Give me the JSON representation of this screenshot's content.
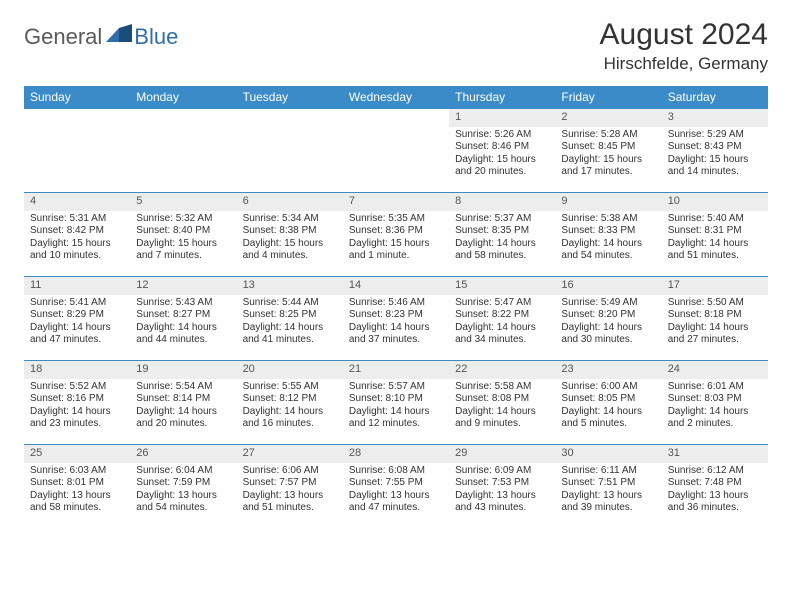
{
  "brand": {
    "part1": "General",
    "part2": "Blue"
  },
  "title": "August 2024",
  "subtitle": "Hirschfelde, Germany",
  "colors": {
    "header_bg": "#3b8bc8",
    "header_text": "#ffffff",
    "daynum_bg": "#ededed",
    "row_border": "#3b8bc8",
    "logo_gray": "#5a5a5a",
    "logo_blue": "#2f6fa8",
    "text": "#333333"
  },
  "day_headers": [
    "Sunday",
    "Monday",
    "Tuesday",
    "Wednesday",
    "Thursday",
    "Friday",
    "Saturday"
  ],
  "weeks": [
    [
      null,
      null,
      null,
      null,
      {
        "n": "1",
        "sr": "Sunrise: 5:26 AM",
        "ss": "Sunset: 8:46 PM",
        "d1": "Daylight: 15 hours",
        "d2": "and 20 minutes."
      },
      {
        "n": "2",
        "sr": "Sunrise: 5:28 AM",
        "ss": "Sunset: 8:45 PM",
        "d1": "Daylight: 15 hours",
        "d2": "and 17 minutes."
      },
      {
        "n": "3",
        "sr": "Sunrise: 5:29 AM",
        "ss": "Sunset: 8:43 PM",
        "d1": "Daylight: 15 hours",
        "d2": "and 14 minutes."
      }
    ],
    [
      {
        "n": "4",
        "sr": "Sunrise: 5:31 AM",
        "ss": "Sunset: 8:42 PM",
        "d1": "Daylight: 15 hours",
        "d2": "and 10 minutes."
      },
      {
        "n": "5",
        "sr": "Sunrise: 5:32 AM",
        "ss": "Sunset: 8:40 PM",
        "d1": "Daylight: 15 hours",
        "d2": "and 7 minutes."
      },
      {
        "n": "6",
        "sr": "Sunrise: 5:34 AM",
        "ss": "Sunset: 8:38 PM",
        "d1": "Daylight: 15 hours",
        "d2": "and 4 minutes."
      },
      {
        "n": "7",
        "sr": "Sunrise: 5:35 AM",
        "ss": "Sunset: 8:36 PM",
        "d1": "Daylight: 15 hours",
        "d2": "and 1 minute."
      },
      {
        "n": "8",
        "sr": "Sunrise: 5:37 AM",
        "ss": "Sunset: 8:35 PM",
        "d1": "Daylight: 14 hours",
        "d2": "and 58 minutes."
      },
      {
        "n": "9",
        "sr": "Sunrise: 5:38 AM",
        "ss": "Sunset: 8:33 PM",
        "d1": "Daylight: 14 hours",
        "d2": "and 54 minutes."
      },
      {
        "n": "10",
        "sr": "Sunrise: 5:40 AM",
        "ss": "Sunset: 8:31 PM",
        "d1": "Daylight: 14 hours",
        "d2": "and 51 minutes."
      }
    ],
    [
      {
        "n": "11",
        "sr": "Sunrise: 5:41 AM",
        "ss": "Sunset: 8:29 PM",
        "d1": "Daylight: 14 hours",
        "d2": "and 47 minutes."
      },
      {
        "n": "12",
        "sr": "Sunrise: 5:43 AM",
        "ss": "Sunset: 8:27 PM",
        "d1": "Daylight: 14 hours",
        "d2": "and 44 minutes."
      },
      {
        "n": "13",
        "sr": "Sunrise: 5:44 AM",
        "ss": "Sunset: 8:25 PM",
        "d1": "Daylight: 14 hours",
        "d2": "and 41 minutes."
      },
      {
        "n": "14",
        "sr": "Sunrise: 5:46 AM",
        "ss": "Sunset: 8:23 PM",
        "d1": "Daylight: 14 hours",
        "d2": "and 37 minutes."
      },
      {
        "n": "15",
        "sr": "Sunrise: 5:47 AM",
        "ss": "Sunset: 8:22 PM",
        "d1": "Daylight: 14 hours",
        "d2": "and 34 minutes."
      },
      {
        "n": "16",
        "sr": "Sunrise: 5:49 AM",
        "ss": "Sunset: 8:20 PM",
        "d1": "Daylight: 14 hours",
        "d2": "and 30 minutes."
      },
      {
        "n": "17",
        "sr": "Sunrise: 5:50 AM",
        "ss": "Sunset: 8:18 PM",
        "d1": "Daylight: 14 hours",
        "d2": "and 27 minutes."
      }
    ],
    [
      {
        "n": "18",
        "sr": "Sunrise: 5:52 AM",
        "ss": "Sunset: 8:16 PM",
        "d1": "Daylight: 14 hours",
        "d2": "and 23 minutes."
      },
      {
        "n": "19",
        "sr": "Sunrise: 5:54 AM",
        "ss": "Sunset: 8:14 PM",
        "d1": "Daylight: 14 hours",
        "d2": "and 20 minutes."
      },
      {
        "n": "20",
        "sr": "Sunrise: 5:55 AM",
        "ss": "Sunset: 8:12 PM",
        "d1": "Daylight: 14 hours",
        "d2": "and 16 minutes."
      },
      {
        "n": "21",
        "sr": "Sunrise: 5:57 AM",
        "ss": "Sunset: 8:10 PM",
        "d1": "Daylight: 14 hours",
        "d2": "and 12 minutes."
      },
      {
        "n": "22",
        "sr": "Sunrise: 5:58 AM",
        "ss": "Sunset: 8:08 PM",
        "d1": "Daylight: 14 hours",
        "d2": "and 9 minutes."
      },
      {
        "n": "23",
        "sr": "Sunrise: 6:00 AM",
        "ss": "Sunset: 8:05 PM",
        "d1": "Daylight: 14 hours",
        "d2": "and 5 minutes."
      },
      {
        "n": "24",
        "sr": "Sunrise: 6:01 AM",
        "ss": "Sunset: 8:03 PM",
        "d1": "Daylight: 14 hours",
        "d2": "and 2 minutes."
      }
    ],
    [
      {
        "n": "25",
        "sr": "Sunrise: 6:03 AM",
        "ss": "Sunset: 8:01 PM",
        "d1": "Daylight: 13 hours",
        "d2": "and 58 minutes."
      },
      {
        "n": "26",
        "sr": "Sunrise: 6:04 AM",
        "ss": "Sunset: 7:59 PM",
        "d1": "Daylight: 13 hours",
        "d2": "and 54 minutes."
      },
      {
        "n": "27",
        "sr": "Sunrise: 6:06 AM",
        "ss": "Sunset: 7:57 PM",
        "d1": "Daylight: 13 hours",
        "d2": "and 51 minutes."
      },
      {
        "n": "28",
        "sr": "Sunrise: 6:08 AM",
        "ss": "Sunset: 7:55 PM",
        "d1": "Daylight: 13 hours",
        "d2": "and 47 minutes."
      },
      {
        "n": "29",
        "sr": "Sunrise: 6:09 AM",
        "ss": "Sunset: 7:53 PM",
        "d1": "Daylight: 13 hours",
        "d2": "and 43 minutes."
      },
      {
        "n": "30",
        "sr": "Sunrise: 6:11 AM",
        "ss": "Sunset: 7:51 PM",
        "d1": "Daylight: 13 hours",
        "d2": "and 39 minutes."
      },
      {
        "n": "31",
        "sr": "Sunrise: 6:12 AM",
        "ss": "Sunset: 7:48 PM",
        "d1": "Daylight: 13 hours",
        "d2": "and 36 minutes."
      }
    ]
  ]
}
